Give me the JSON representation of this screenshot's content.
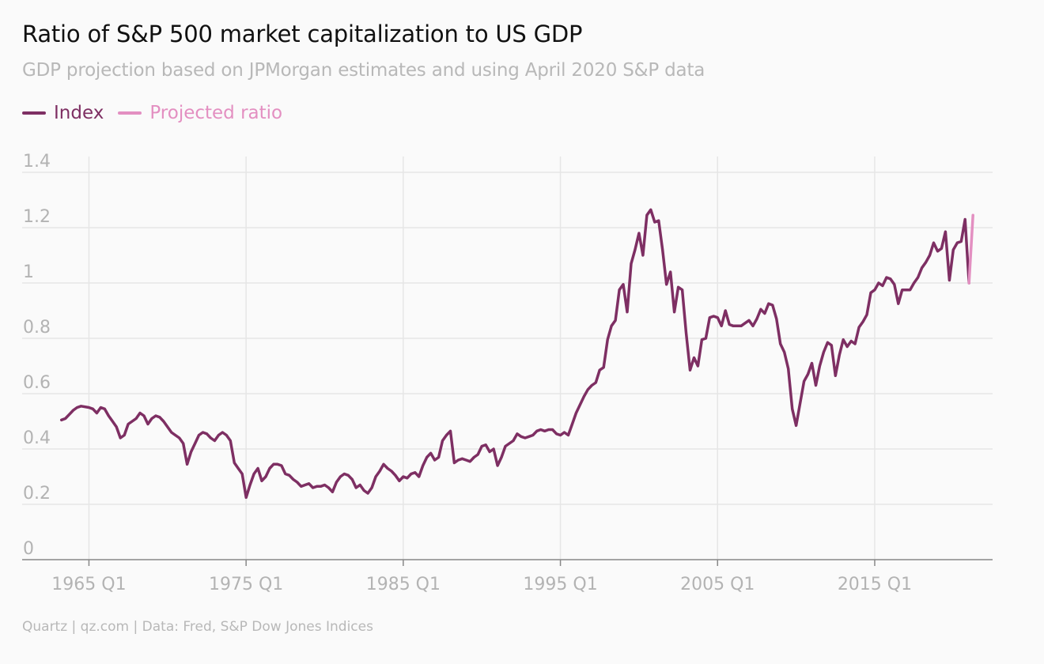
{
  "header": {
    "title": "Ratio of S&P 500 market capitalization to US GDP",
    "subtitle": "GDP projection based on JPMorgan estimates and using April 2020 S&P data"
  },
  "footer": {
    "source": "Quartz | qz.com | Data: Fred, S&P Dow Jones Indices"
  },
  "colors": {
    "index": "#7e2f63",
    "projected": "#e38fc1",
    "grid": "#e6e6e6",
    "axis": "#888888",
    "tick": "#b3b3b3"
  },
  "chart_data": {
    "type": "line",
    "title": "Ratio of S&P 500 market capitalization to US GDP",
    "subtitle": "GDP projection based on JPMorgan estimates and using April 2020 S&P data",
    "legend_position": "top-left",
    "grid": "horizontal and vertical",
    "ylim": [
      0,
      1.4
    ],
    "xlim": [
      1960.75,
      2022.5
    ],
    "y_ticks": [
      {
        "value": 0,
        "label": "0"
      },
      {
        "value": 0.2,
        "label": "0.2"
      },
      {
        "value": 0.4,
        "label": "0.4"
      },
      {
        "value": 0.6,
        "label": "0.6"
      },
      {
        "value": 0.8,
        "label": "0.8"
      },
      {
        "value": 1.0,
        "label": "1"
      },
      {
        "value": 1.2,
        "label": "1.2"
      },
      {
        "value": 1.4,
        "label": "1.4"
      }
    ],
    "x_ticks": [
      {
        "value": 1965,
        "label": "1965 Q1"
      },
      {
        "value": 1975,
        "label": "1975 Q1"
      },
      {
        "value": 1985,
        "label": "1985 Q1"
      },
      {
        "value": 1995,
        "label": "1995 Q1"
      },
      {
        "value": 2005,
        "label": "2005 Q1"
      },
      {
        "value": 2015,
        "label": "2015 Q1"
      }
    ],
    "series": [
      {
        "name": "Index",
        "points": [
          [
            1963.25,
            0.505
          ],
          [
            1963.5,
            0.51
          ],
          [
            1963.75,
            0.525
          ],
          [
            1964.0,
            0.54
          ],
          [
            1964.25,
            0.55
          ],
          [
            1964.5,
            0.555
          ],
          [
            1965.0,
            0.55
          ],
          [
            1965.25,
            0.545
          ],
          [
            1965.5,
            0.53
          ],
          [
            1965.75,
            0.55
          ],
          [
            1966.0,
            0.545
          ],
          [
            1966.25,
            0.52
          ],
          [
            1966.5,
            0.5
          ],
          [
            1966.75,
            0.48
          ],
          [
            1967.0,
            0.44
          ],
          [
            1967.25,
            0.45
          ],
          [
            1967.5,
            0.49
          ],
          [
            1967.75,
            0.5
          ],
          [
            1968.0,
            0.51
          ],
          [
            1968.25,
            0.53
          ],
          [
            1968.5,
            0.52
          ],
          [
            1968.75,
            0.49
          ],
          [
            1969.0,
            0.51
          ],
          [
            1969.25,
            0.52
          ],
          [
            1969.5,
            0.515
          ],
          [
            1969.75,
            0.5
          ],
          [
            1970.0,
            0.48
          ],
          [
            1970.25,
            0.46
          ],
          [
            1970.5,
            0.45
          ],
          [
            1970.75,
            0.44
          ],
          [
            1971.0,
            0.42
          ],
          [
            1971.25,
            0.345
          ],
          [
            1971.5,
            0.39
          ],
          [
            1971.75,
            0.42
          ],
          [
            1972.0,
            0.45
          ],
          [
            1972.25,
            0.46
          ],
          [
            1972.5,
            0.455
          ],
          [
            1972.75,
            0.44
          ],
          [
            1973.0,
            0.43
          ],
          [
            1973.25,
            0.45
          ],
          [
            1973.5,
            0.46
          ],
          [
            1973.75,
            0.45
          ],
          [
            1974.0,
            0.43
          ],
          [
            1974.25,
            0.35
          ],
          [
            1974.5,
            0.33
          ],
          [
            1974.75,
            0.31
          ],
          [
            1975.0,
            0.225
          ],
          [
            1975.25,
            0.27
          ],
          [
            1975.5,
            0.31
          ],
          [
            1975.75,
            0.33
          ],
          [
            1976.0,
            0.285
          ],
          [
            1976.25,
            0.3
          ],
          [
            1976.5,
            0.33
          ],
          [
            1976.75,
            0.345
          ],
          [
            1977.0,
            0.345
          ],
          [
            1977.25,
            0.34
          ],
          [
            1977.5,
            0.31
          ],
          [
            1977.75,
            0.305
          ],
          [
            1978.0,
            0.29
          ],
          [
            1978.25,
            0.28
          ],
          [
            1978.5,
            0.265
          ],
          [
            1978.75,
            0.27
          ],
          [
            1979.0,
            0.275
          ],
          [
            1979.25,
            0.26
          ],
          [
            1979.5,
            0.265
          ],
          [
            1979.75,
            0.265
          ],
          [
            1980.0,
            0.27
          ],
          [
            1980.25,
            0.26
          ],
          [
            1980.5,
            0.245
          ],
          [
            1980.75,
            0.28
          ],
          [
            1981.0,
            0.3
          ],
          [
            1981.25,
            0.31
          ],
          [
            1981.5,
            0.305
          ],
          [
            1981.75,
            0.29
          ],
          [
            1982.0,
            0.26
          ],
          [
            1982.25,
            0.27
          ],
          [
            1982.5,
            0.25
          ],
          [
            1982.75,
            0.24
          ],
          [
            1983.0,
            0.26
          ],
          [
            1983.25,
            0.3
          ],
          [
            1983.5,
            0.32
          ],
          [
            1983.75,
            0.345
          ],
          [
            1984.0,
            0.33
          ],
          [
            1984.25,
            0.32
          ],
          [
            1984.5,
            0.305
          ],
          [
            1984.75,
            0.285
          ],
          [
            1985.0,
            0.3
          ],
          [
            1985.25,
            0.295
          ],
          [
            1985.5,
            0.31
          ],
          [
            1985.75,
            0.315
          ],
          [
            1986.0,
            0.3
          ],
          [
            1986.25,
            0.34
          ],
          [
            1986.5,
            0.37
          ],
          [
            1986.75,
            0.385
          ],
          [
            1987.0,
            0.36
          ],
          [
            1987.25,
            0.37
          ],
          [
            1987.5,
            0.43
          ],
          [
            1987.75,
            0.45
          ],
          [
            1988.0,
            0.465
          ],
          [
            1988.25,
            0.35
          ],
          [
            1988.5,
            0.36
          ],
          [
            1988.75,
            0.365
          ],
          [
            1989.0,
            0.36
          ],
          [
            1989.25,
            0.355
          ],
          [
            1989.5,
            0.37
          ],
          [
            1989.75,
            0.38
          ],
          [
            1990.0,
            0.41
          ],
          [
            1990.25,
            0.415
          ],
          [
            1990.5,
            0.39
          ],
          [
            1990.75,
            0.4
          ],
          [
            1991.0,
            0.34
          ],
          [
            1991.25,
            0.37
          ],
          [
            1991.5,
            0.41
          ],
          [
            1991.75,
            0.42
          ],
          [
            1992.0,
            0.43
          ],
          [
            1992.25,
            0.455
          ],
          [
            1992.5,
            0.445
          ],
          [
            1992.75,
            0.44
          ],
          [
            1993.0,
            0.445
          ],
          [
            1993.25,
            0.45
          ],
          [
            1993.5,
            0.465
          ],
          [
            1993.75,
            0.47
          ],
          [
            1994.0,
            0.465
          ],
          [
            1994.25,
            0.47
          ],
          [
            1994.5,
            0.47
          ],
          [
            1994.75,
            0.455
          ],
          [
            1995.0,
            0.45
          ],
          [
            1995.25,
            0.46
          ],
          [
            1995.5,
            0.45
          ],
          [
            1995.75,
            0.49
          ],
          [
            1996.0,
            0.53
          ],
          [
            1996.25,
            0.56
          ],
          [
            1996.5,
            0.59
          ],
          [
            1996.75,
            0.615
          ],
          [
            1997.0,
            0.63
          ],
          [
            1997.25,
            0.64
          ],
          [
            1997.5,
            0.685
          ],
          [
            1997.75,
            0.695
          ],
          [
            1998.0,
            0.795
          ],
          [
            1998.25,
            0.845
          ],
          [
            1998.5,
            0.865
          ],
          [
            1998.75,
            0.975
          ],
          [
            1999.0,
            0.995
          ],
          [
            1999.25,
            0.895
          ],
          [
            1999.5,
            1.07
          ],
          [
            1999.75,
            1.12
          ],
          [
            2000.0,
            1.18
          ],
          [
            2000.25,
            1.1
          ],
          [
            2000.5,
            1.245
          ],
          [
            2000.75,
            1.265
          ],
          [
            2001.0,
            1.22
          ],
          [
            2001.25,
            1.225
          ],
          [
            2001.5,
            1.12
          ],
          [
            2001.75,
            0.995
          ],
          [
            2002.0,
            1.04
          ],
          [
            2002.25,
            0.895
          ],
          [
            2002.5,
            0.985
          ],
          [
            2002.75,
            0.975
          ],
          [
            2003.0,
            0.82
          ],
          [
            2003.25,
            0.685
          ],
          [
            2003.5,
            0.73
          ],
          [
            2003.75,
            0.7
          ],
          [
            2004.0,
            0.795
          ],
          [
            2004.25,
            0.8
          ],
          [
            2004.5,
            0.875
          ],
          [
            2004.75,
            0.88
          ],
          [
            2005.0,
            0.875
          ],
          [
            2005.25,
            0.845
          ],
          [
            2005.5,
            0.9
          ],
          [
            2005.75,
            0.85
          ],
          [
            2006.0,
            0.845
          ],
          [
            2006.25,
            0.845
          ],
          [
            2006.5,
            0.845
          ],
          [
            2006.75,
            0.855
          ],
          [
            2007.0,
            0.865
          ],
          [
            2007.25,
            0.845
          ],
          [
            2007.5,
            0.87
          ],
          [
            2007.75,
            0.905
          ],
          [
            2008.0,
            0.89
          ],
          [
            2008.25,
            0.925
          ],
          [
            2008.5,
            0.92
          ],
          [
            2008.75,
            0.87
          ],
          [
            2009.0,
            0.78
          ],
          [
            2009.25,
            0.75
          ],
          [
            2009.5,
            0.69
          ],
          [
            2009.75,
            0.545
          ],
          [
            2010.0,
            0.485
          ],
          [
            2010.25,
            0.565
          ],
          [
            2010.5,
            0.645
          ],
          [
            2010.75,
            0.67
          ],
          [
            2011.0,
            0.71
          ],
          [
            2011.25,
            0.63
          ],
          [
            2011.5,
            0.7
          ],
          [
            2011.75,
            0.75
          ],
          [
            2012.0,
            0.785
          ],
          [
            2012.25,
            0.775
          ],
          [
            2012.5,
            0.665
          ],
          [
            2012.75,
            0.74
          ],
          [
            2013.0,
            0.795
          ],
          [
            2013.25,
            0.77
          ],
          [
            2013.5,
            0.79
          ],
          [
            2013.75,
            0.78
          ],
          [
            2014.0,
            0.84
          ],
          [
            2014.25,
            0.86
          ],
          [
            2014.5,
            0.885
          ],
          [
            2014.75,
            0.965
          ],
          [
            2015.0,
            0.975
          ],
          [
            2015.25,
            1.0
          ],
          [
            2015.5,
            0.99
          ],
          [
            2015.75,
            1.02
          ],
          [
            2016.0,
            1.015
          ],
          [
            2016.25,
            0.995
          ],
          [
            2016.5,
            0.925
          ],
          [
            2016.75,
            0.975
          ],
          [
            2017.0,
            0.975
          ],
          [
            2017.25,
            0.975
          ],
          [
            2017.5,
            1.0
          ],
          [
            2017.75,
            1.02
          ],
          [
            2018.0,
            1.055
          ],
          [
            2018.25,
            1.075
          ],
          [
            2018.5,
            1.1
          ],
          [
            2018.75,
            1.145
          ],
          [
            2019.0,
            1.115
          ],
          [
            2019.25,
            1.125
          ],
          [
            2019.5,
            1.185
          ],
          [
            2019.75,
            1.01
          ],
          [
            2020.0,
            1.12
          ],
          [
            2020.25,
            1.145
          ],
          [
            2020.5,
            1.15
          ],
          [
            2020.75,
            1.23
          ],
          [
            2021.0,
            1.0
          ]
        ]
      },
      {
        "name": "Projected ratio",
        "points": [
          [
            2021.0,
            1.0
          ],
          [
            2021.25,
            1.245
          ]
        ]
      }
    ]
  }
}
